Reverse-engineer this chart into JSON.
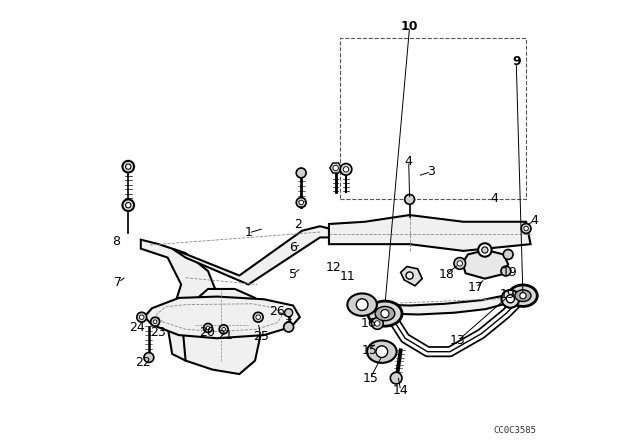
{
  "background_color": "#ffffff",
  "title": "",
  "diagram_code": "CC0C3585",
  "line_color": "#000000",
  "text_color": "#000000",
  "font_size": 9,
  "bold_labels": [
    "9",
    "10"
  ]
}
